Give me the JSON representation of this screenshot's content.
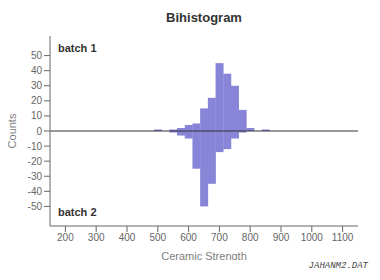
{
  "chart_data": {
    "type": "bar",
    "title": "Bihistogram",
    "xlabel": "Ceramic Strength",
    "ylabel": "Counts",
    "x": [
      250,
      350,
      450,
      500,
      550,
      575,
      600,
      625,
      650,
      675,
      700,
      725,
      750,
      775,
      800,
      850
    ],
    "series": [
      {
        "values": [
          0,
          0,
          0,
          1,
          1,
          2,
          4,
          5,
          15,
          22,
          45,
          38,
          30,
          14,
          2,
          1
        ]
      },
      {
        "values": [
          0,
          0,
          0,
          0,
          -1,
          -3,
          -5,
          -25,
          -50,
          -35,
          -14,
          -12,
          -5,
          -1,
          0,
          0
        ]
      }
    ],
    "color": "#8884d8",
    "xlim": [
      150,
      1150
    ],
    "xticks": [
      200,
      300,
      400,
      500,
      600,
      700,
      800,
      900,
      1000,
      1100
    ],
    "ylim": [
      -63,
      63
    ],
    "yticks": [
      -50,
      -40,
      -30,
      -20,
      -10,
      0,
      10,
      20,
      30,
      40,
      50
    ],
    "annotations": [
      "batch 1",
      "batch 2",
      "JAHANM2.DAT"
    ]
  }
}
